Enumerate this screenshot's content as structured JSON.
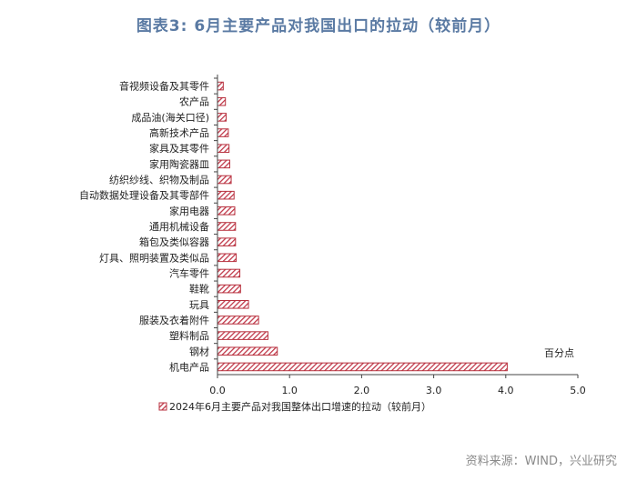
{
  "figure": {
    "title": "图表3:    6月主要产品对我国出口的拉动（较前月）",
    "source": "资料来源：WIND，兴业研究"
  },
  "chart_data": {
    "type": "bar",
    "orientation": "horizontal",
    "categories": [
      "音视频设备及其零件",
      "农产品",
      "成品油(海关口径)",
      "高新技术产品",
      "家具及其零件",
      "家用陶瓷器皿",
      "纺织纱线、织物及制品",
      "自动数据处理设备及其零部件",
      "家用电器",
      "通用机械设备",
      "箱包及类似容器",
      "灯具、照明装置及类似品",
      "汽车零件",
      "鞋靴",
      "玩具",
      "服装及衣着附件",
      "塑料制品",
      "钢材",
      "机电产品"
    ],
    "series": [
      {
        "name": "2024年6月主要产品对我国整体出口增速的拉动（较前月）",
        "values": [
          0.08,
          0.11,
          0.12,
          0.15,
          0.16,
          0.17,
          0.19,
          0.23,
          0.24,
          0.25,
          0.25,
          0.26,
          0.31,
          0.32,
          0.43,
          0.57,
          0.7,
          0.83,
          4.02
        ]
      }
    ],
    "xlim": [
      0,
      5
    ],
    "xticks": [
      "0.0",
      "1.0",
      "2.0",
      "3.0",
      "4.0",
      "5.0"
    ],
    "unit_label": "百分点",
    "grid": false,
    "legend_position": "bottom",
    "colors": {
      "bar_stroke": "#b8323f",
      "bar_hatch": "#c0394a",
      "bar_bg": "#ffffff"
    }
  }
}
